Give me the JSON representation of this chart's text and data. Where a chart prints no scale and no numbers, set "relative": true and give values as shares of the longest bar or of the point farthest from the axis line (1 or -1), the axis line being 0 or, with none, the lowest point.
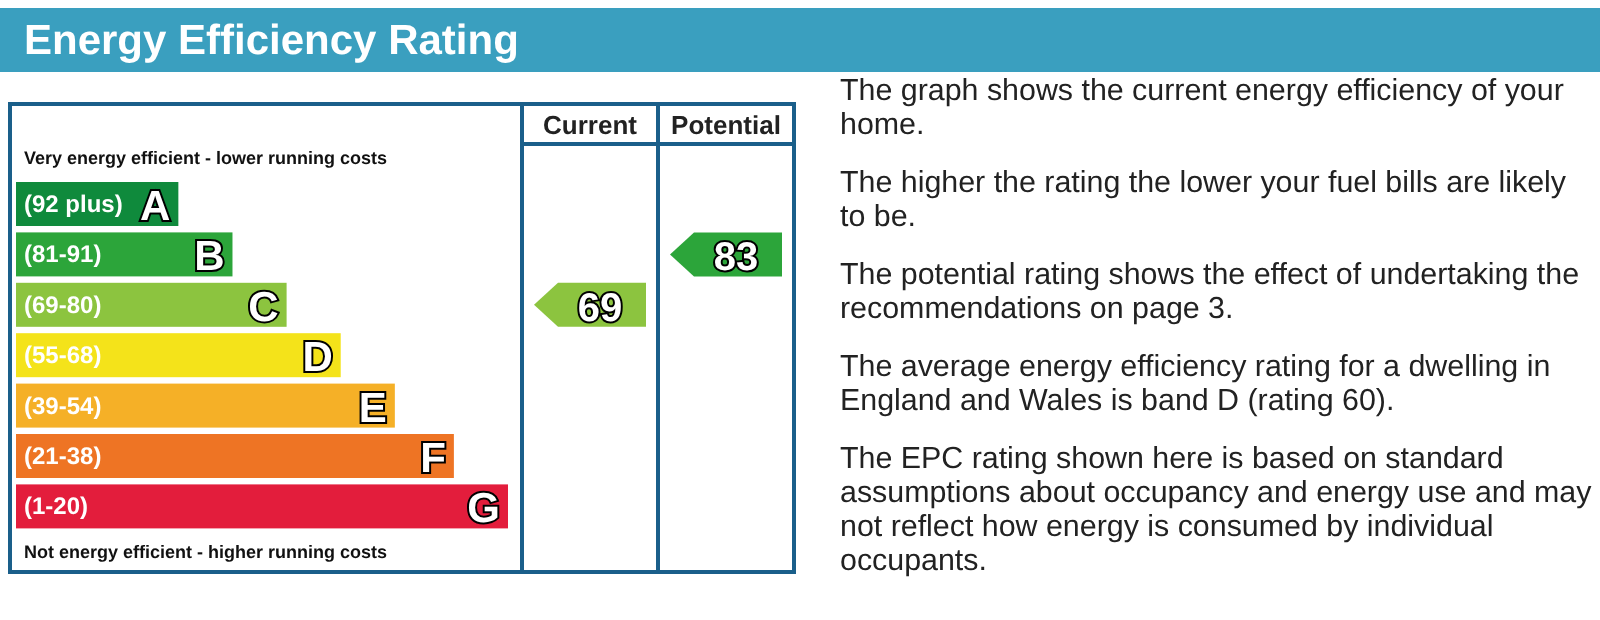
{
  "chart_data": {
    "type": "bar",
    "orientation": "horizontal",
    "relative": true,
    "title": "Energy Efficiency Rating",
    "categories": [
      "(92 plus) A",
      "(81-91) B",
      "(69-80) C",
      "(55-68) D",
      "(39-54) E",
      "(21-38) F",
      "(1-20) G"
    ],
    "values": [
      0.33,
      0.44,
      0.55,
      0.66,
      0.77,
      0.89,
      1
    ],
    "colors": [
      "#0f8a3c",
      "#2ca53a",
      "#8cc43f",
      "#f4e31a",
      "#f5b027",
      "#ee7424",
      "#e31d3c"
    ],
    "annotations": [
      "Very energy efficient - lower running costs",
      "Not energy efficient - higher running costs",
      "Current",
      "Potential",
      "69",
      "83",
      "The graph shows the current energy efficiency of your home.",
      "The higher the rating the lower your fuel bills are likely to be.",
      "The potential rating shows the effect of undertaking the recommendations on page 3.",
      "The average energy efficiency rating for a dwelling in England and Wales is band D (rating 60).",
      "The EPC rating shown here is based on standard assumptions about occupancy and energy use and may not reflect how energy is consumed by individual occupants."
    ]
  }
}
